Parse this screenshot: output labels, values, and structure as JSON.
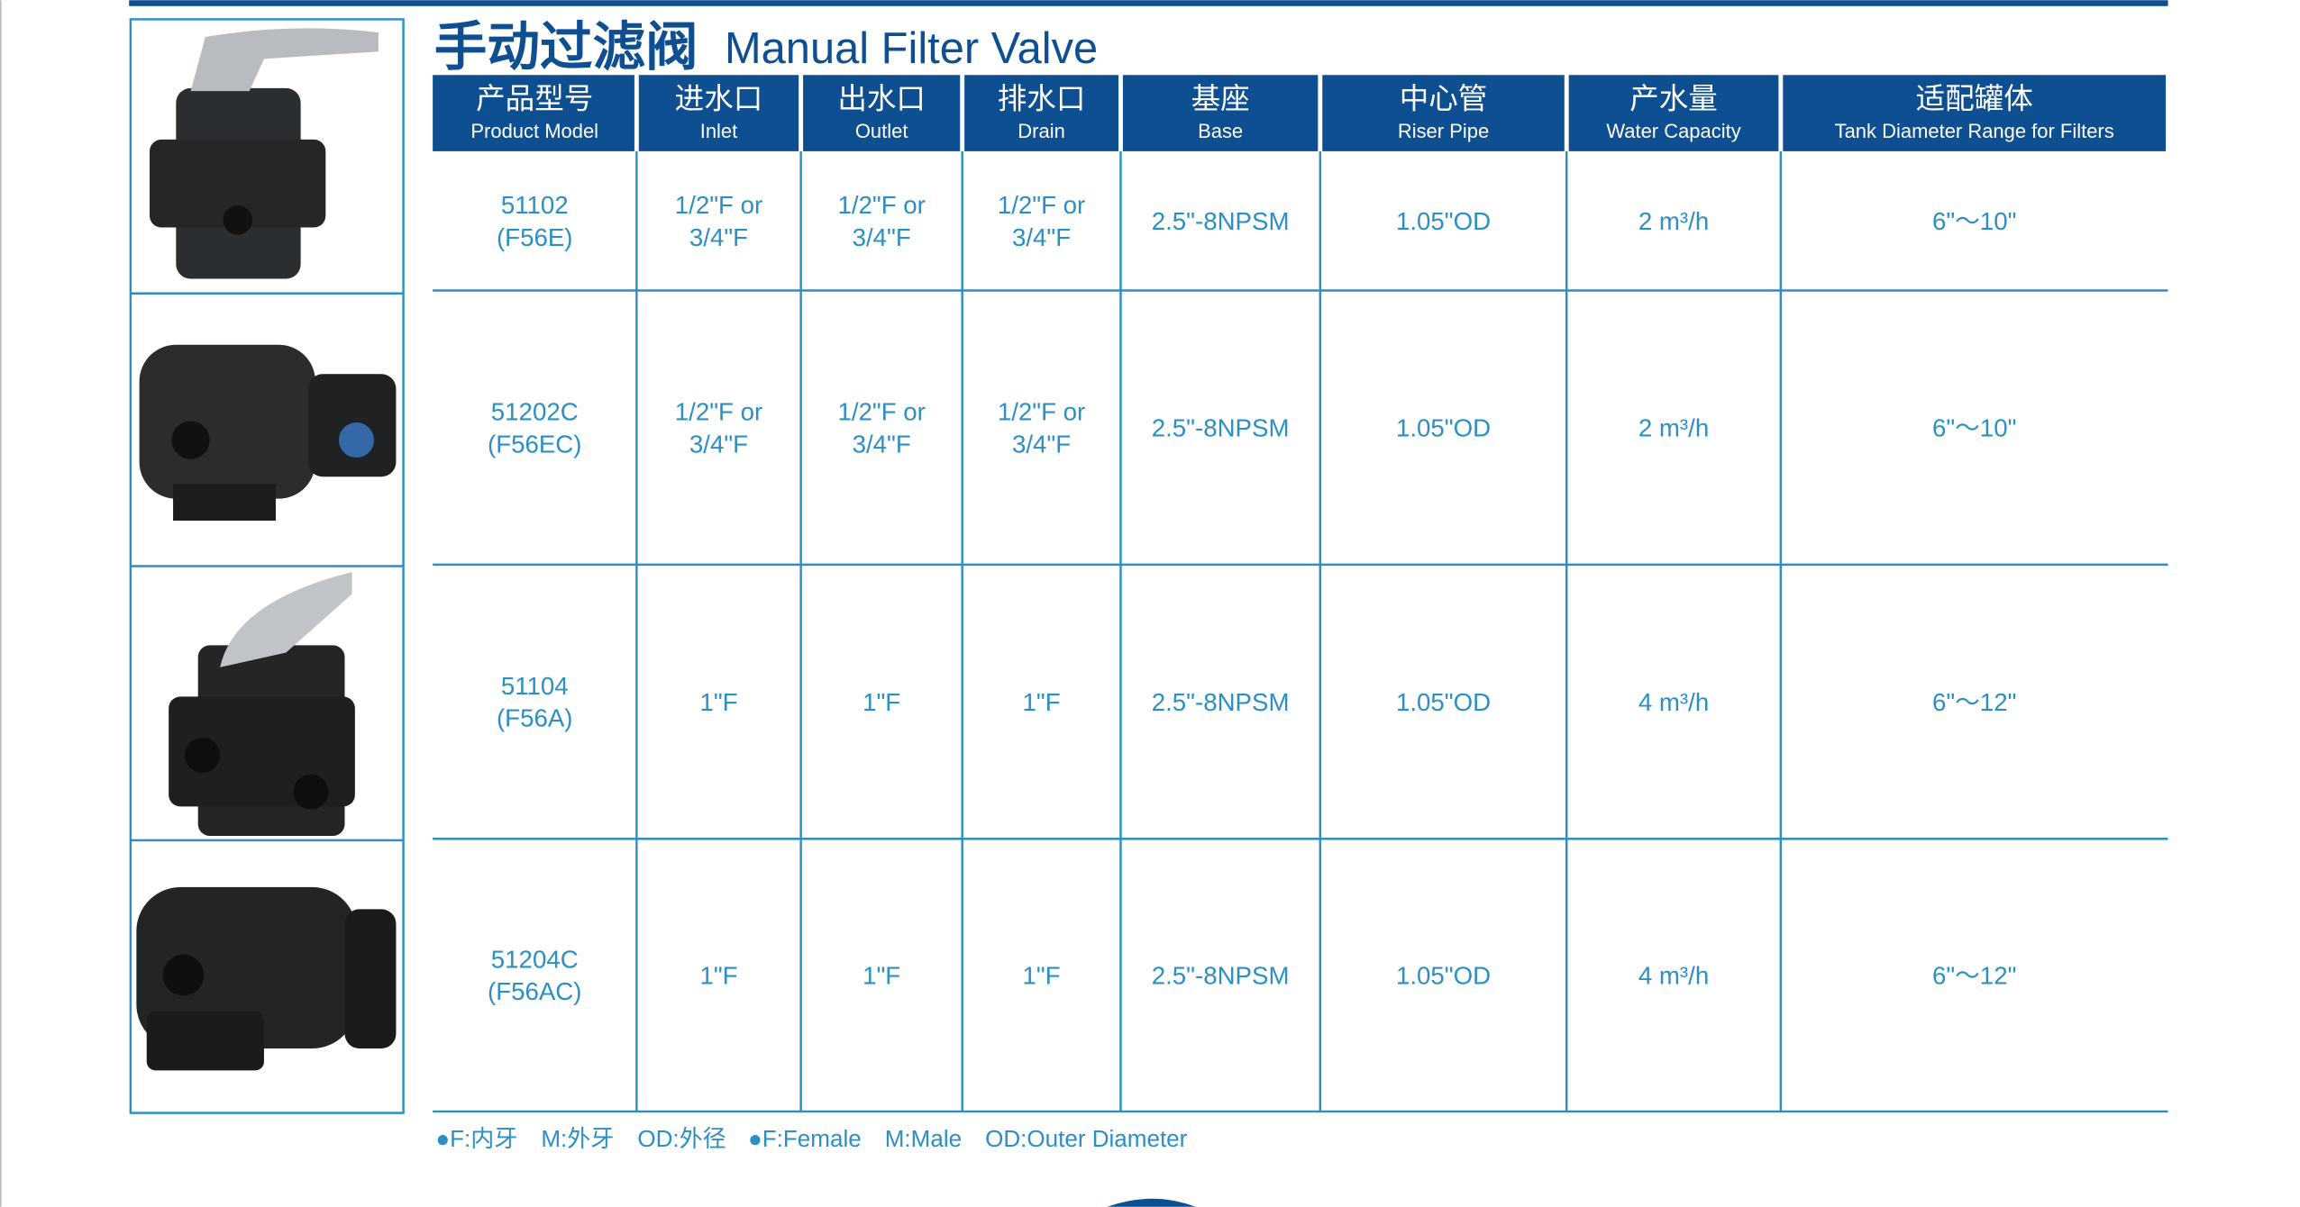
{
  "header": {
    "title_cn": "手动过滤阀",
    "title_en": "Manual Filter Valve"
  },
  "table": {
    "columns": [
      {
        "cn": "产品型号",
        "en": "Product Model"
      },
      {
        "cn": "进水口",
        "en": "Inlet"
      },
      {
        "cn": "出水口",
        "en": "Outlet"
      },
      {
        "cn": "排水口",
        "en": "Drain"
      },
      {
        "cn": "基座",
        "en": "Base"
      },
      {
        "cn": "中心管",
        "en": "Riser Pipe"
      },
      {
        "cn": "产水量",
        "en": "Water Capacity"
      },
      {
        "cn": "适配罐体",
        "en": "Tank Diameter Range for Filters"
      }
    ],
    "rows": [
      [
        [
          "51102",
          "(F56E)"
        ],
        [
          "1/2\"F or",
          "3/4\"F"
        ],
        [
          "1/2\"F or",
          "3/4\"F"
        ],
        [
          "1/2\"F or",
          "3/4\"F"
        ],
        [
          "2.5\"-8NPSM"
        ],
        [
          "1.05\"OD"
        ],
        [
          "2 m³/h"
        ],
        [
          "6\"～10\""
        ]
      ],
      [
        [
          "51202C",
          "(F56EC)"
        ],
        [
          "1/2\"F or",
          "3/4\"F"
        ],
        [
          "1/2\"F or",
          "3/4\"F"
        ],
        [
          "1/2\"F or",
          "3/4\"F"
        ],
        [
          "2.5\"-8NPSM"
        ],
        [
          "1.05\"OD"
        ],
        [
          "2 m³/h"
        ],
        [
          "6\"～10\""
        ]
      ],
      [
        [
          "51104",
          "(F56A)"
        ],
        [
          "1\"F"
        ],
        [
          "1\"F"
        ],
        [
          "1\"F"
        ],
        [
          "2.5\"-8NPSM"
        ],
        [
          "1.05\"OD"
        ],
        [
          "4 m³/h"
        ],
        [
          "6\"～12\""
        ]
      ],
      [
        [
          "51204C",
          "(F56AC)"
        ],
        [
          "1\"F"
        ],
        [
          "1\"F"
        ],
        [
          "1\"F"
        ],
        [
          "2.5\"-8NPSM"
        ],
        [
          "1.05\"OD"
        ],
        [
          "4 m³/h"
        ],
        [
          "6\"～12\""
        ]
      ]
    ]
  },
  "footnote": {
    "cn": "●F:内牙　M:外牙　OD:外径",
    "en": "●F:Female　M:Male　OD:Outer Diameter"
  }
}
